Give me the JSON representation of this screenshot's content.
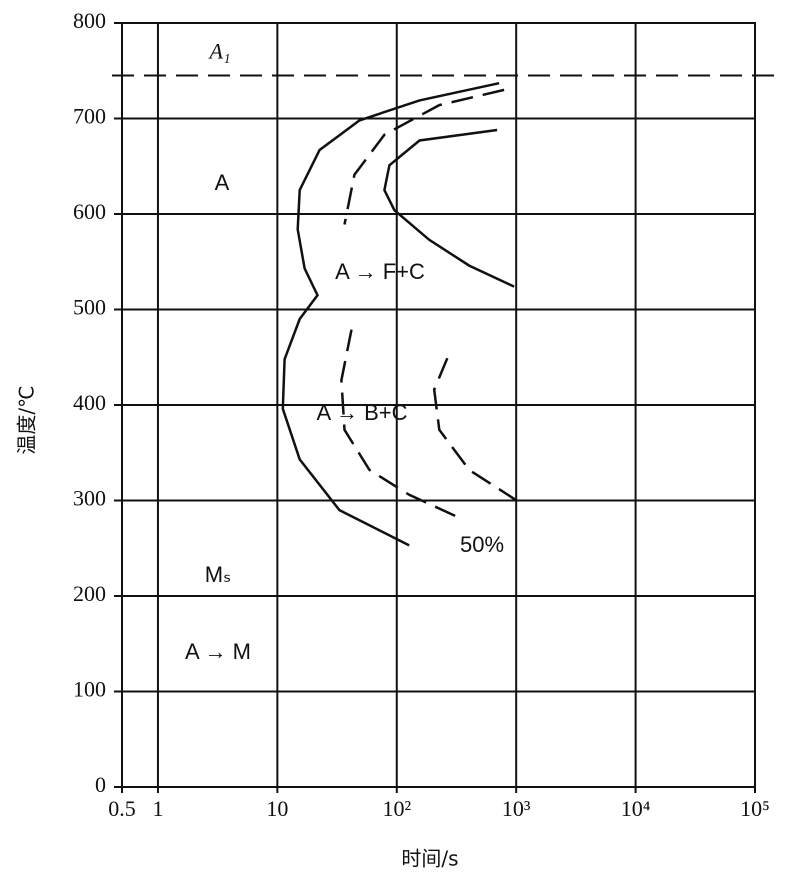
{
  "chart_data": {
    "type": "line",
    "xlabel": "时间/s",
    "ylabel": "温度/℃",
    "xscale": "log",
    "xlim": [
      0.5,
      100000
    ],
    "ylim": [
      0,
      800
    ],
    "xticks": [
      0.5,
      1,
      10,
      {
        "value": 100,
        "label": "10²"
      },
      {
        "value": 1000,
        "label": "10³"
      },
      {
        "value": 10000,
        "label": "10⁴"
      },
      {
        "value": 100000,
        "label": "10⁵"
      }
    ],
    "yticks": [
      0,
      100,
      200,
      300,
      400,
      500,
      600,
      700,
      800
    ],
    "grid": true,
    "reference_line": {
      "value": 745,
      "label": "A₁",
      "style": "dashed"
    },
    "series": [
      {
        "color": "#111111",
        "style": "solid",
        "x": [
          720,
          155,
          48.7,
          22.6,
          15.4,
          14.8,
          16.9,
          21.7,
          15.4,
          11.5,
          11.1,
          15.4,
          33.1,
          127
        ],
        "values": [
          737,
          719,
          698,
          667,
          625,
          584,
          543,
          515,
          490,
          448,
          396,
          343,
          290,
          253
        ]
      },
      {
        "color": "#111111",
        "style": "dashed",
        "x": [
          792,
          227,
          78.8,
          44.2,
          36.5
        ],
        "values": [
          730,
          714,
          683,
          641,
          589
        ]
      },
      {
        "color": "#111111",
        "style": "solid",
        "x": [
          692,
          155,
          86.7,
          78.8,
          95.5,
          187,
          404,
          960
        ],
        "values": [
          688,
          677,
          651,
          625,
          604,
          573,
          546,
          524
        ]
      },
      {
        "color": "#111111",
        "style": "dashed",
        "x": [
          41.8,
          34.4,
          36.5,
          59,
          127,
          333
        ],
        "values": [
          479,
          426,
          374,
          332,
          306,
          282
        ]
      },
      {
        "color": "#111111",
        "style": "dashed",
        "x": [
          265,
          206,
          227,
          404,
          1164
        ],
        "values": [
          449,
          416,
          374,
          332,
          295
        ]
      }
    ],
    "annotations": [
      "A",
      "A → F+C",
      "A → B+C",
      "50%",
      "Mₛ",
      "A → M"
    ]
  }
}
